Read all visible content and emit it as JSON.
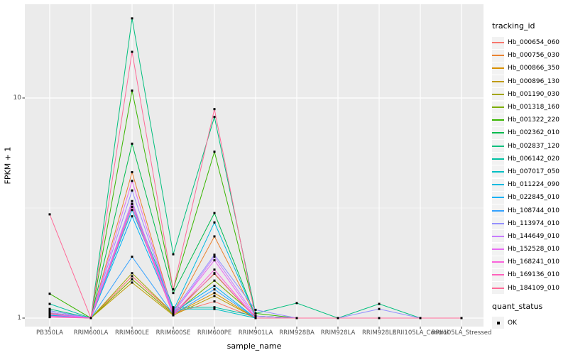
{
  "figure": {
    "background": "#FFFFFF",
    "panel_background": "#EBEBEB",
    "grid_color": "#FFFFFF",
    "tick_label_color": "#4D4D4D",
    "tick_mark_color": "#333333"
  },
  "axes": {
    "y_title": "FPKM + 1",
    "x_title": "sample_name"
  },
  "legend": {
    "tracking_title": "tracking_id",
    "quant_title": "quant_status",
    "quant_items": [
      {
        "label": "OK",
        "marker": "black-square"
      }
    ]
  },
  "chart_data": {
    "type": "line",
    "title": "",
    "xlabel": "sample_name",
    "ylabel": "FPKM + 1",
    "y_scale": "log10",
    "ylim": [
      0.92,
      26
    ],
    "y_major_breaks": [
      1,
      10
    ],
    "y_minor_breaks": [
      3.162
    ],
    "y_tick_labels": [
      "1",
      "10"
    ],
    "grid": true,
    "legend_position": "right",
    "point_marker": "filled-square",
    "point_color": "#000000",
    "quant_status": "OK",
    "categories": [
      "PB350LA",
      "RRIM600LA",
      "RRIM600LE",
      "RRIM600SE",
      "RRIM600PE",
      "RRIM901LA",
      "RRIM928BA",
      "RRIM928LA",
      "RRIM928LE",
      "RRII105LA_Control",
      "RRII105LA_Stressed"
    ],
    "series": [
      {
        "name": "Hb_000654_060",
        "color": "#F8766D",
        "values": [
          1.05,
          1.0,
          1.55,
          1.05,
          1.19,
          1.0,
          1.0,
          1.0,
          1.0,
          1.0,
          1.0
        ]
      },
      {
        "name": "Hb_000756_030",
        "color": "#EA8331",
        "values": [
          1.04,
          1.0,
          4.6,
          1.06,
          2.35,
          1.02,
          1.0,
          1.0,
          1.0,
          1.0,
          1.0
        ]
      },
      {
        "name": "Hb_000866_350",
        "color": "#D89000",
        "values": [
          1.03,
          1.0,
          1.5,
          1.04,
          1.3,
          1.0,
          1.0,
          1.0,
          1.0,
          1.0,
          1.0
        ]
      },
      {
        "name": "Hb_000896_130",
        "color": "#C09B00",
        "values": [
          1.02,
          1.0,
          1.45,
          1.03,
          1.26,
          1.0,
          1.0,
          1.0,
          1.0,
          1.0,
          1.0
        ]
      },
      {
        "name": "Hb_001190_030",
        "color": "#A3A500",
        "values": [
          1.02,
          1.0,
          1.6,
          1.05,
          1.59,
          1.0,
          1.0,
          1.0,
          1.0,
          1.0,
          1.0
        ]
      },
      {
        "name": "Hb_001318_160",
        "color": "#7CAE00",
        "values": [
          1.03,
          1.0,
          1.5,
          1.04,
          1.48,
          1.02,
          1.0,
          1.0,
          1.0,
          1.0,
          1.0
        ]
      },
      {
        "name": "Hb_001322_220",
        "color": "#39B600",
        "values": [
          1.29,
          1.0,
          10.8,
          1.35,
          5.7,
          1.05,
          1.0,
          1.0,
          1.0,
          1.0,
          1.0
        ]
      },
      {
        "name": "Hb_002362_010",
        "color": "#00BB4E",
        "values": [
          1.06,
          1.0,
          6.2,
          1.3,
          3.0,
          1.02,
          1.0,
          1.0,
          1.0,
          1.0,
          1.0
        ]
      },
      {
        "name": "Hb_002837_120",
        "color": "#00BF7D",
        "values": [
          1.1,
          1.0,
          23.0,
          1.95,
          8.2,
          1.05,
          1.17,
          1.0,
          1.16,
          1.0,
          1.0
        ]
      },
      {
        "name": "Hb_006142_020",
        "color": "#00C1A3",
        "values": [
          1.16,
          1.0,
          3.3,
          1.12,
          1.12,
          1.02,
          1.0,
          1.0,
          1.0,
          1.0,
          1.0
        ]
      },
      {
        "name": "Hb_007017_050",
        "color": "#00BFC4",
        "values": [
          1.08,
          1.0,
          3.2,
          1.1,
          1.1,
          1.0,
          1.0,
          1.0,
          1.0,
          1.0,
          1.0
        ]
      },
      {
        "name": "Hb_011224_090",
        "color": "#00BAE0",
        "values": [
          1.04,
          1.0,
          3.1,
          1.08,
          2.72,
          1.02,
          1.0,
          1.0,
          1.0,
          1.0,
          1.0
        ]
      },
      {
        "name": "Hb_022845_010",
        "color": "#00B0F6",
        "values": [
          1.03,
          1.0,
          2.9,
          1.06,
          1.4,
          1.0,
          1.0,
          1.0,
          1.0,
          1.0,
          1.0
        ]
      },
      {
        "name": "Hb_108744_010",
        "color": "#35A2FF",
        "values": [
          1.02,
          1.0,
          1.9,
          1.04,
          1.35,
          1.0,
          1.0,
          1.0,
          1.0,
          1.0,
          1.0
        ]
      },
      {
        "name": "Hb_113974_010",
        "color": "#9590FF",
        "values": [
          1.08,
          1.0,
          3.8,
          1.07,
          1.94,
          1.09,
          1.0,
          1.0,
          1.1,
          1.0,
          1.0
        ]
      },
      {
        "name": "Hb_144649_010",
        "color": "#C77CFF",
        "values": [
          1.06,
          1.0,
          3.4,
          1.05,
          1.9,
          1.02,
          1.0,
          1.0,
          1.0,
          1.0,
          1.0
        ]
      },
      {
        "name": "Hb_152528_010",
        "color": "#E76BF3",
        "values": [
          1.04,
          1.0,
          4.2,
          1.06,
          1.83,
          1.0,
          1.0,
          1.0,
          1.0,
          1.0,
          1.0
        ]
      },
      {
        "name": "Hb_168241_010",
        "color": "#FA62DB",
        "values": [
          1.02,
          1.0,
          3.3,
          1.04,
          1.66,
          1.0,
          1.0,
          1.0,
          1.0,
          1.0,
          1.0
        ]
      },
      {
        "name": "Hb_169136_010",
        "color": "#FF62BC",
        "values": [
          1.01,
          1.0,
          3.2,
          1.03,
          1.6,
          1.0,
          1.0,
          1.0,
          1.0,
          1.0,
          1.0
        ]
      },
      {
        "name": "Hb_184109_010",
        "color": "#FF6A98",
        "values": [
          2.96,
          1.0,
          16.2,
          1.35,
          8.9,
          1.0,
          1.0,
          1.0,
          1.0,
          1.0,
          1.0
        ]
      }
    ]
  }
}
